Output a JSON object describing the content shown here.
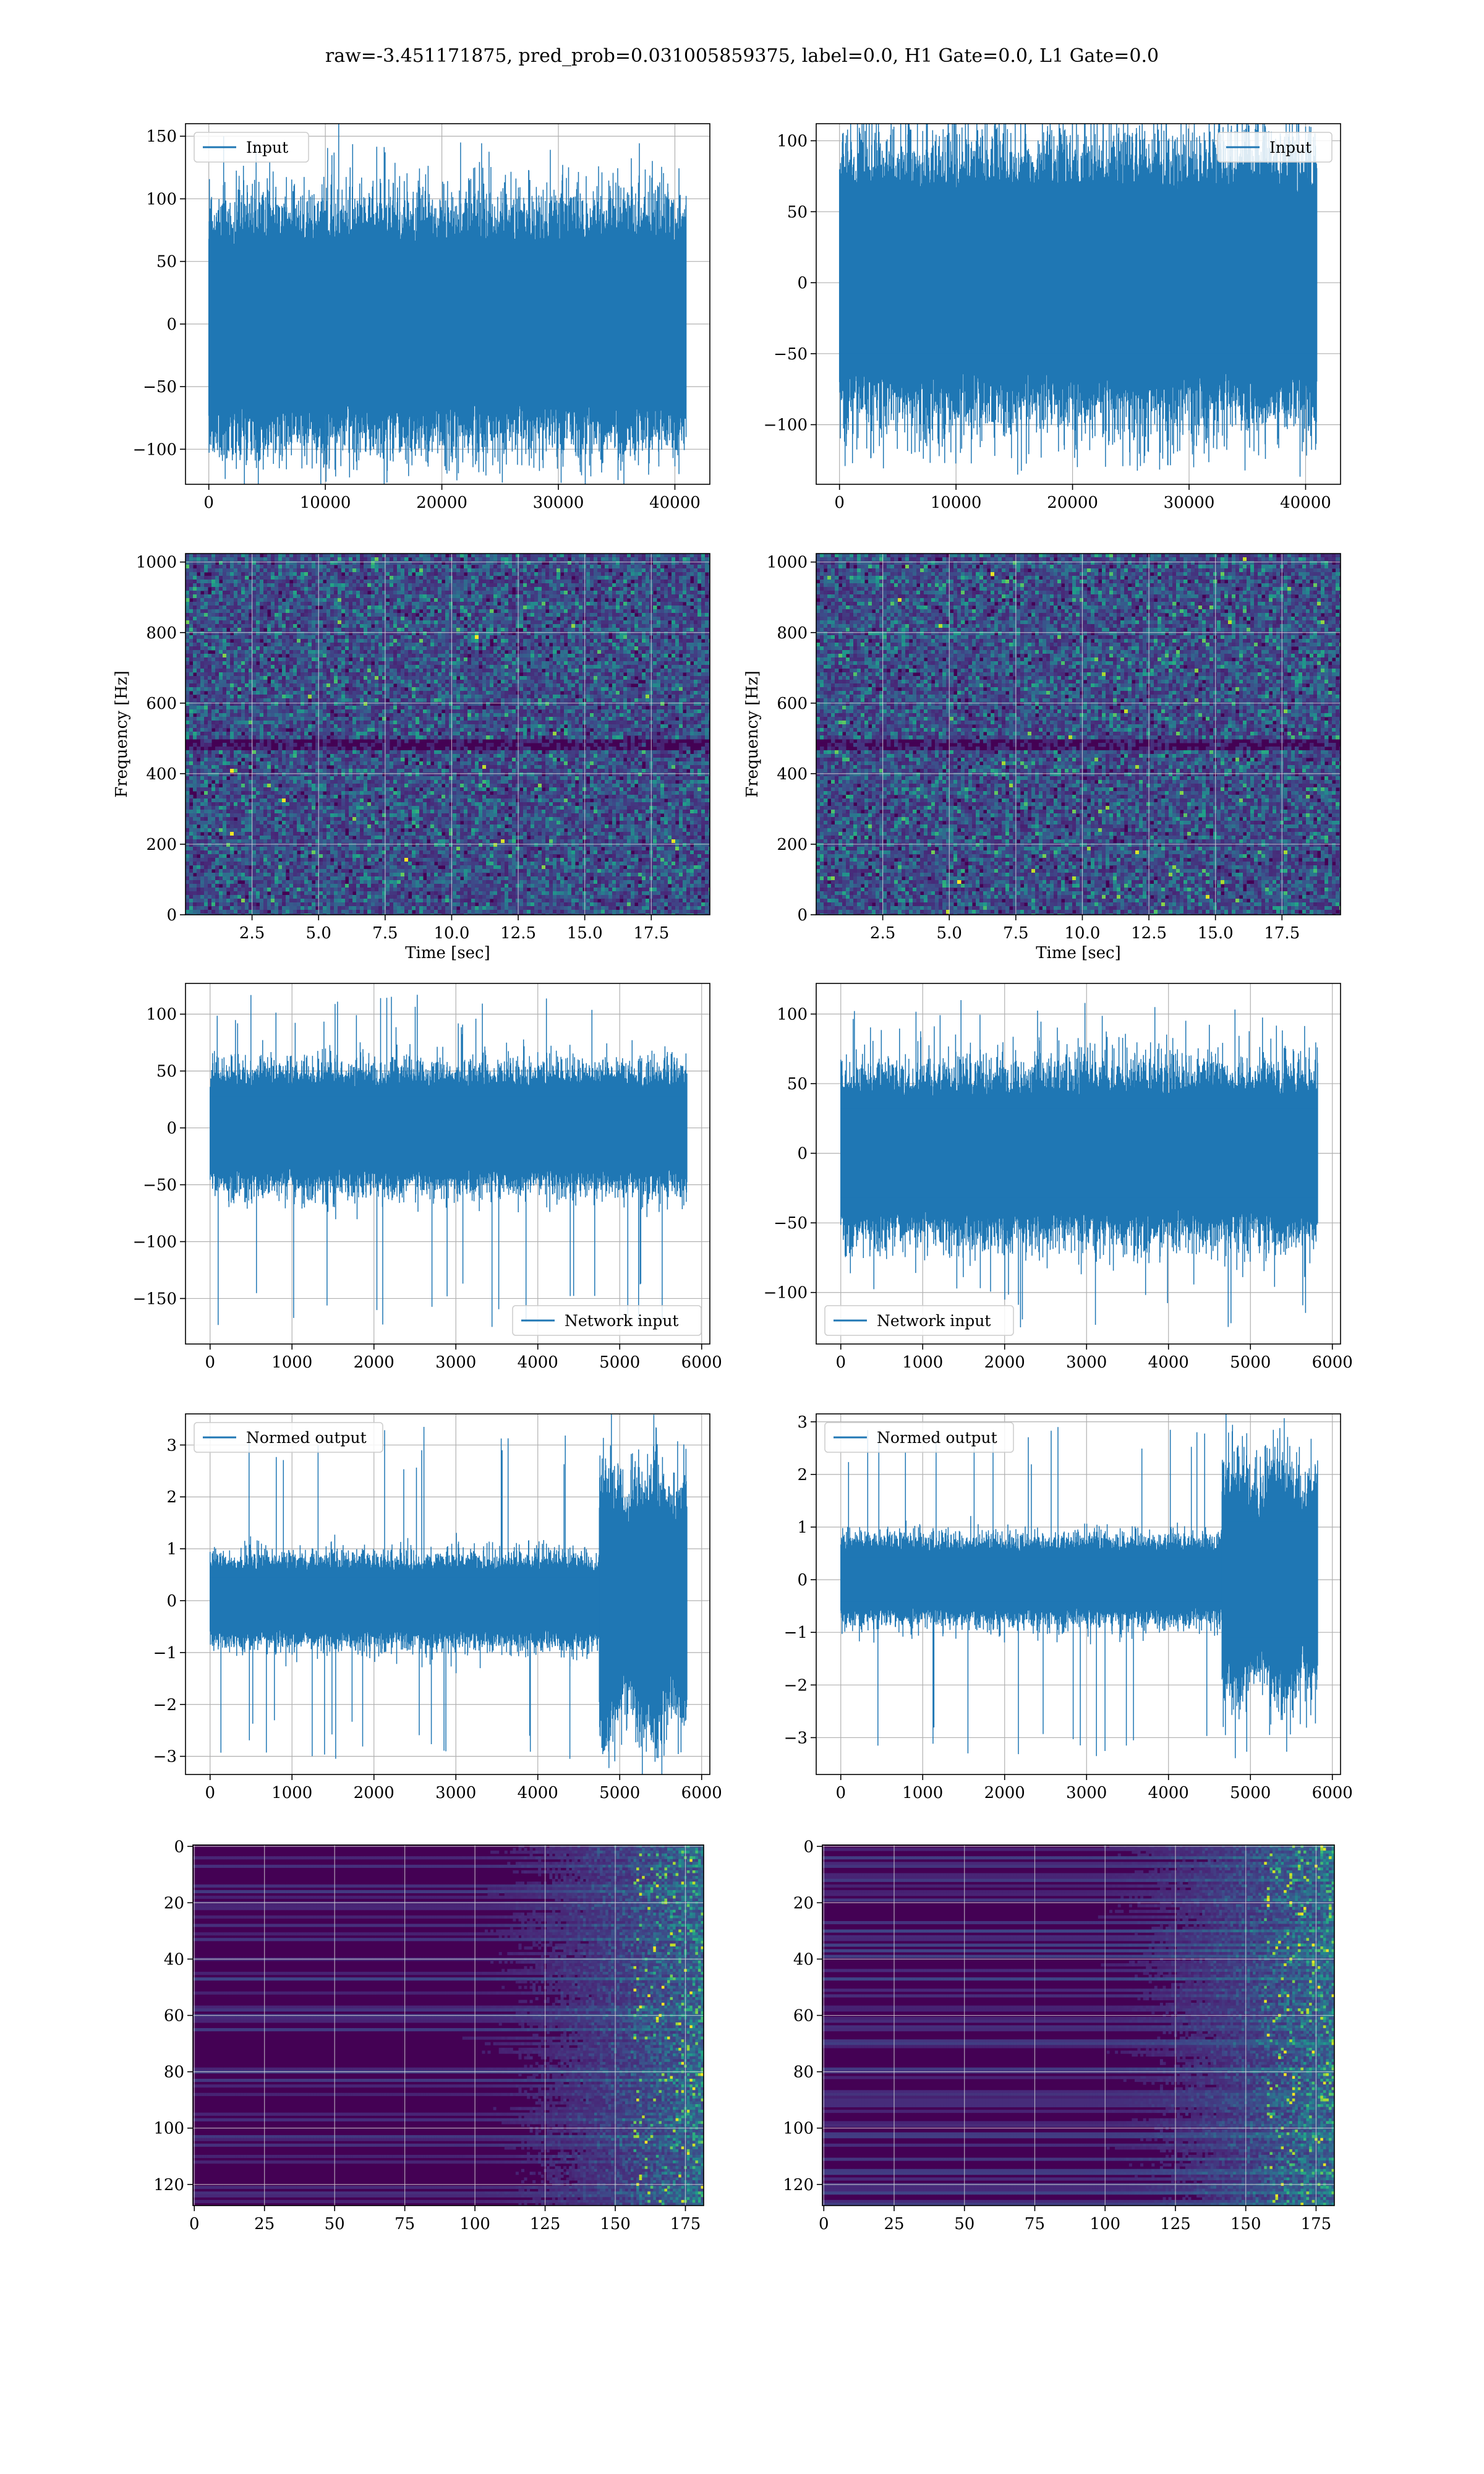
{
  "suptitle": "raw=-3.451171875, pred_prob=0.031005859375, label=0.0, H1 Gate=0.0, L1 Gate=0.0",
  "colors": {
    "line": "#1f77b4",
    "grid": "#b0b0b0",
    "viridis": [
      "#440154",
      "#482878",
      "#3e4989",
      "#31688e",
      "#26828e",
      "#1f9e89",
      "#35b779",
      "#6ece58",
      "#b5de2b",
      "#fde725"
    ]
  },
  "chart_data": [
    {
      "id": "input-h1",
      "type": "line",
      "series": [
        {
          "name": "Input",
          "length": 40960,
          "amplitude": 50,
          "peak_range": [
            -112,
            145
          ]
        }
      ],
      "legend": "upper left",
      "xlim": [
        -2000,
        43000
      ],
      "ylim": [
        -128,
        160
      ],
      "xticks": [
        0,
        10000,
        20000,
        30000,
        40000
      ],
      "xtick_labels": [
        "0",
        "10000",
        "20000",
        "30000",
        "40000"
      ],
      "yticks": [
        -100,
        -50,
        0,
        50,
        100,
        150
      ],
      "ytick_labels": [
        "−100",
        "−50",
        "0",
        "50",
        "100",
        "150"
      ],
      "xlabel": "",
      "ylabel": "",
      "grid": true
    },
    {
      "id": "input-l1",
      "type": "line",
      "series": [
        {
          "name": "Input",
          "length": 40960,
          "amplitude": 50,
          "peak_range": [
            -130,
            115
          ]
        }
      ],
      "legend": "upper right",
      "xlim": [
        -2000,
        43000
      ],
      "ylim": [
        -142,
        112
      ],
      "xticks": [
        0,
        10000,
        20000,
        30000,
        40000
      ],
      "xtick_labels": [
        "0",
        "10000",
        "20000",
        "30000",
        "40000"
      ],
      "yticks": [
        -100,
        -50,
        0,
        50,
        100
      ],
      "ytick_labels": [
        "−100",
        "−50",
        "0",
        "50",
        "100"
      ],
      "xlabel": "",
      "ylabel": "",
      "grid": true
    },
    {
      "id": "spectrogram-h1",
      "type": "heatmap",
      "xlim": [
        0,
        19.7
      ],
      "ylim": [
        0,
        1024
      ],
      "xticks": [
        2.5,
        5,
        7.5,
        10,
        12.5,
        15,
        17.5
      ],
      "xtick_labels": [
        "2.5",
        "5.0",
        "7.5",
        "10.0",
        "12.5",
        "15.0",
        "17.5"
      ],
      "yticks": [
        0,
        200,
        400,
        600,
        800,
        1000
      ],
      "ytick_labels": [
        "0",
        "200",
        "400",
        "600",
        "800",
        "1000"
      ],
      "xlabel": "Time [sec]",
      "ylabel": "Frequency [Hz]",
      "colormap": "viridis",
      "grid": true
    },
    {
      "id": "spectrogram-l1",
      "type": "heatmap",
      "xlim": [
        0,
        19.7
      ],
      "ylim": [
        0,
        1024
      ],
      "xticks": [
        2.5,
        5,
        7.5,
        10,
        12.5,
        15,
        17.5
      ],
      "xtick_labels": [
        "2.5",
        "5.0",
        "7.5",
        "10.0",
        "12.5",
        "15.0",
        "17.5"
      ],
      "yticks": [
        0,
        200,
        400,
        600,
        800,
        1000
      ],
      "ytick_labels": [
        "0",
        "200",
        "400",
        "600",
        "800",
        "1000"
      ],
      "xlabel": "Time [sec]",
      "ylabel": "Frequency [Hz]",
      "colormap": "viridis",
      "grid": true
    },
    {
      "id": "network-input-h1",
      "type": "line",
      "series": [
        {
          "name": "Network input",
          "length": 5820,
          "amplitude": 28,
          "peak_range": [
            -175,
            117
          ]
        }
      ],
      "legend": "lower right",
      "xlim": [
        -300,
        6100
      ],
      "ylim": [
        -190,
        127
      ],
      "xticks": [
        0,
        1000,
        2000,
        3000,
        4000,
        5000,
        6000
      ],
      "xtick_labels": [
        "0",
        "1000",
        "2000",
        "3000",
        "4000",
        "5000",
        "6000"
      ],
      "yticks": [
        -150,
        -100,
        -50,
        0,
        50,
        100
      ],
      "ytick_labels": [
        "−150",
        "−100",
        "−50",
        "0",
        "50",
        "100"
      ],
      "xlabel": "",
      "ylabel": "",
      "grid": true
    },
    {
      "id": "network-input-l1",
      "type": "line",
      "series": [
        {
          "name": "Network input",
          "length": 5820,
          "amplitude": 32,
          "peak_range": [
            -125,
            110
          ]
        }
      ],
      "legend": "lower left",
      "xlim": [
        -300,
        6100
      ],
      "ylim": [
        -137,
        122
      ],
      "xticks": [
        0,
        1000,
        2000,
        3000,
        4000,
        5000,
        6000
      ],
      "xtick_labels": [
        "0",
        "1000",
        "2000",
        "3000",
        "4000",
        "5000",
        "6000"
      ],
      "yticks": [
        -100,
        -50,
        0,
        50,
        100
      ],
      "ytick_labels": [
        "−100",
        "−50",
        "0",
        "50",
        "100"
      ],
      "xlabel": "",
      "ylabel": "",
      "grid": true
    },
    {
      "id": "normed-output-h1",
      "type": "line",
      "series": [
        {
          "name": "Normed output",
          "length": 5820,
          "amplitude": 0.45,
          "burst_start": 4750,
          "burst_amplitude": 1.2,
          "peak_range": [
            -3.05,
            3.35
          ]
        }
      ],
      "legend": "upper left",
      "xlim": [
        -300,
        6100
      ],
      "ylim": [
        -3.35,
        3.6
      ],
      "xticks": [
        0,
        1000,
        2000,
        3000,
        4000,
        5000,
        6000
      ],
      "xtick_labels": [
        "0",
        "1000",
        "2000",
        "3000",
        "4000",
        "5000",
        "6000"
      ],
      "yticks": [
        -3,
        -2,
        -1,
        0,
        1,
        2,
        3
      ],
      "ytick_labels": [
        "−3",
        "−2",
        "−1",
        "0",
        "1",
        "2",
        "3"
      ],
      "xlabel": "",
      "ylabel": "",
      "grid": true
    },
    {
      "id": "normed-output-l1",
      "type": "line",
      "series": [
        {
          "name": "Normed output",
          "length": 5820,
          "amplitude": 0.42,
          "burst_start": 4650,
          "burst_amplitude": 1.05,
          "peak_range": [
            -3.35,
            2.9
          ]
        }
      ],
      "legend": "upper left",
      "xlim": [
        -300,
        6100
      ],
      "ylim": [
        -3.7,
        3.15
      ],
      "xticks": [
        0,
        1000,
        2000,
        3000,
        4000,
        5000,
        6000
      ],
      "xtick_labels": [
        "0",
        "1000",
        "2000",
        "3000",
        "4000",
        "5000",
        "6000"
      ],
      "yticks": [
        -3,
        -2,
        -1,
        0,
        1,
        2,
        3
      ],
      "ytick_labels": [
        "−3",
        "−2",
        "−1",
        "0",
        "1",
        "2",
        "3"
      ],
      "xlabel": "",
      "ylabel": "",
      "grid": true
    },
    {
      "id": "features-h1",
      "type": "heatmap",
      "xlim": [
        -0.5,
        181.5
      ],
      "ylim": [
        127.5,
        -0.5
      ],
      "xticks": [
        0,
        25,
        50,
        75,
        100,
        125,
        150,
        175
      ],
      "xtick_labels": [
        "0",
        "25",
        "50",
        "75",
        "100",
        "125",
        "150",
        "175"
      ],
      "yticks": [
        0,
        20,
        40,
        60,
        80,
        100,
        120
      ],
      "ytick_labels": [
        "0",
        "20",
        "40",
        "60",
        "80",
        "100",
        "120"
      ],
      "xlabel": "",
      "ylabel": "",
      "colormap": "viridis",
      "grid": true
    },
    {
      "id": "features-l1",
      "type": "heatmap",
      "xlim": [
        -0.5,
        181.5
      ],
      "ylim": [
        127.5,
        -0.5
      ],
      "xticks": [
        0,
        25,
        50,
        75,
        100,
        125,
        150,
        175
      ],
      "xtick_labels": [
        "0",
        "25",
        "50",
        "75",
        "100",
        "125",
        "150",
        "175"
      ],
      "yticks": [
        0,
        20,
        40,
        60,
        80,
        100,
        120
      ],
      "ytick_labels": [
        "0",
        "20",
        "40",
        "60",
        "80",
        "100",
        "120"
      ],
      "xlabel": "",
      "ylabel": "",
      "colormap": "viridis",
      "grid": true
    }
  ]
}
